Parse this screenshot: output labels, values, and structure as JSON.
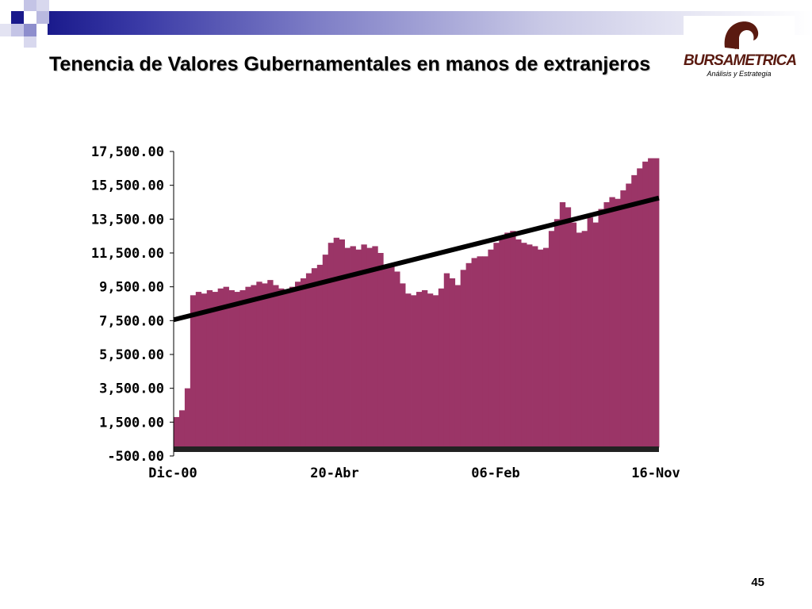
{
  "slide": {
    "title": "Tenencia de Valores Gubernamentales en manos de extranjeros",
    "page_number": "45"
  },
  "logo": {
    "name": "BURSAMETRICA",
    "tagline": "Análisis y Estrategia",
    "color": "#5a1a10"
  },
  "colors": {
    "bars": "#9b3567",
    "trend": "#000000",
    "deco_dark": "#1a1a8c",
    "deco_light": "#b9b9e0"
  },
  "chart_data": {
    "type": "bar",
    "title": "",
    "xlabel": "",
    "ylabel": "",
    "ylim": [
      -500,
      17500
    ],
    "yticks": [
      "-500.00",
      "1,500.00",
      "3,500.00",
      "5,500.00",
      "7,500.00",
      "9,500.00",
      "11,500.00",
      "13,500.00",
      "15,500.00",
      "17,500.00"
    ],
    "xticks": [
      "Dic-00",
      "20-Abr",
      "06-Feb",
      "16-Nov"
    ],
    "grid": false,
    "legend": "none",
    "series": [
      {
        "type": "bar",
        "sampled_values": [
          1800,
          2200,
          3500,
          9000,
          9200,
          9100,
          9300,
          9200,
          9400,
          9500,
          9300,
          9200,
          9300,
          9500,
          9600,
          9800,
          9700,
          9900,
          9600,
          9400,
          9300,
          9500,
          9800,
          10000,
          10300,
          10600,
          10800,
          11400,
          12100,
          12400,
          12300,
          11800,
          11900,
          11700,
          12000,
          11800,
          11900,
          11500,
          10600,
          10700,
          10400,
          9700,
          9100,
          9000,
          9200,
          9300,
          9100,
          9000,
          9400,
          10300,
          10000,
          9600,
          10500,
          10900,
          11200,
          11300,
          11300,
          11700,
          12100,
          12400,
          12700,
          12800,
          12300,
          12100,
          12000,
          11900,
          11700,
          11800,
          12800,
          13500,
          14500,
          14200,
          13300,
          12700,
          12800,
          13600,
          13300,
          14100,
          14500,
          14800,
          14700,
          15200,
          15600,
          16100,
          16500,
          16900,
          17100,
          17100
        ]
      },
      {
        "type": "line",
        "name": "",
        "start": 7550,
        "end": 14750
      }
    ]
  }
}
